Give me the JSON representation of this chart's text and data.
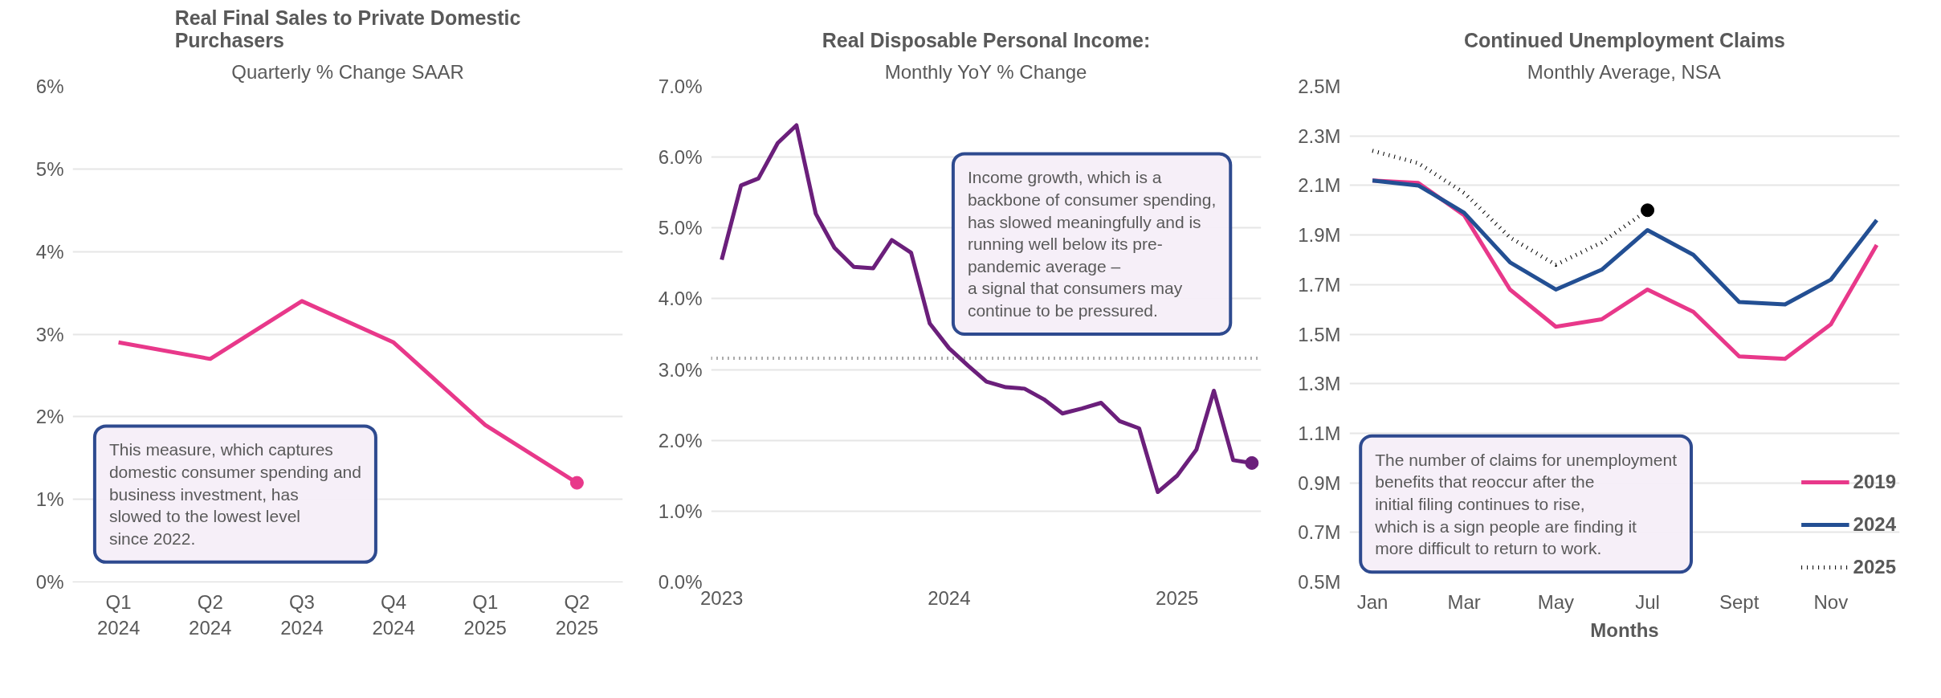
{
  "chart_data": [
    {
      "type": "line",
      "title": "Real Final Sales to Private Domestic Purchasers",
      "subtitle": "Quarterly % Change SAAR",
      "categories": [
        "Q1\n2024",
        "Q2\n2024",
        "Q3\n2024",
        "Q4\n2024",
        "Q1\n2025",
        "Q2\n2025"
      ],
      "series": [
        {
          "color": "#e8388a",
          "values": [
            2.9,
            2.7,
            3.4,
            2.9,
            1.9,
            1.2
          ]
        },
        {
          "type": "scatter",
          "marker": "circle",
          "color": "#e8388a",
          "values": [
            null,
            null,
            null,
            null,
            null,
            1.2
          ]
        }
      ],
      "ylim": [
        0,
        6
      ],
      "yticks": [
        {
          "value": 0,
          "label": "0%"
        },
        {
          "value": 1,
          "label": "1%"
        },
        {
          "value": 2,
          "label": "2%"
        },
        {
          "value": 3,
          "label": "3%"
        },
        {
          "value": 4,
          "label": "4%"
        },
        {
          "value": 5,
          "label": "5%"
        },
        {
          "value": 6,
          "label": "6%"
        }
      ],
      "grid": "y",
      "legend": false,
      "line_style": "solid",
      "annotations": [
        "This measure, which captures domestic consumer spending and business investment, has slowed to the lowest level since 2022."
      ]
    },
    {
      "type": "line",
      "title": "Real Disposable Personal Income:",
      "subtitle": "Monthly YoY % Change",
      "series": [
        {
          "color": "#6b1f7b",
          "x": [
            "2023-01",
            "2023-02",
            "2023-03",
            "2023-04",
            "2023-05",
            "2023-06",
            "2023-07",
            "2023-08",
            "2023-09",
            "2023-10",
            "2023-11",
            "2023-12",
            "2024-01",
            "2024-02",
            "2024-03",
            "2024-04",
            "2024-05",
            "2024-06",
            "2024-07",
            "2024-08",
            "2024-09",
            "2024-10",
            "2024-11",
            "2024-12",
            "2025-01",
            "2025-02",
            "2025-03",
            "2025-04",
            "2025-05"
          ],
          "values": [
            4.55,
            5.6,
            5.7,
            6.2,
            6.45,
            5.2,
            4.72,
            4.45,
            4.43,
            4.83,
            4.65,
            3.65,
            3.3,
            3.05,
            2.83,
            2.75,
            2.73,
            2.58,
            2.38,
            2.45,
            2.53,
            2.27,
            2.17,
            1.27,
            1.5,
            1.87,
            2.7,
            1.72,
            1.68
          ]
        },
        {
          "type": "scatter",
          "marker": "circle",
          "color": "#6b1f7b",
          "x": [
            "2025-05"
          ],
          "values": [
            1.68
          ]
        }
      ],
      "xlim": [
        "2022-12-15",
        "2025-05-16"
      ],
      "xticks": [
        {
          "value": "2023-01",
          "label": "2023"
        },
        {
          "value": "2024-01",
          "label": "2024"
        },
        {
          "value": "2025-01",
          "label": "2025"
        }
      ],
      "ylim": [
        0,
        7
      ],
      "yticks": [
        {
          "value": 0,
          "label": "0.0%"
        },
        {
          "value": 1,
          "label": "1.0%"
        },
        {
          "value": 2,
          "label": "2.0%"
        },
        {
          "value": 3,
          "label": "3.0%"
        },
        {
          "value": 4,
          "label": "4.0%"
        },
        {
          "value": 5,
          "label": "5.0%"
        },
        {
          "value": 6,
          "label": "6.0%"
        },
        {
          "value": 7,
          "label": "7.0%"
        }
      ],
      "ref_lines": [
        {
          "axis": "y",
          "value": 3.16,
          "color": "#595959",
          "line_style": "dotted"
        }
      ],
      "grid": "y",
      "legend": false,
      "line_style": "solid",
      "annotations": [
        "Income growth, which is a backbone of consumer spending, has slowed meaningfully and is running well below its pre-pandemic average –\na signal that consumers may continue to be pressured."
      ]
    },
    {
      "type": "line",
      "title": "Continued Unemployment Claims",
      "subtitle": "Monthly Average, NSA",
      "xlabel": "Months",
      "categories": [
        "Jan",
        null,
        "Mar",
        null,
        "May",
        null,
        "Jul",
        null,
        "Sept",
        null,
        "Nov",
        null
      ],
      "series": [
        {
          "name": "2019",
          "color": "#e8388a",
          "values": [
            2.12,
            2.11,
            1.98,
            1.68,
            1.53,
            1.56,
            1.68,
            1.59,
            1.41,
            1.4,
            1.54,
            1.86
          ]
        },
        {
          "name": "2024",
          "color": "#234f93",
          "values": [
            2.12,
            2.1,
            1.99,
            1.79,
            1.68,
            1.76,
            1.92,
            1.82,
            1.63,
            1.62,
            1.72,
            1.96
          ]
        },
        {
          "name": "2025",
          "color": "#000000",
          "line_style": "dotted",
          "values": [
            2.24,
            2.19,
            2.07,
            1.89,
            1.78,
            1.87,
            2.0,
            null,
            null,
            null,
            null,
            null
          ]
        },
        {
          "type": "scatter",
          "marker": "circle",
          "color": "#000000",
          "values": [
            null,
            null,
            null,
            null,
            null,
            null,
            2.0,
            null,
            null,
            null,
            null,
            null
          ]
        }
      ],
      "ylim": [
        0.5,
        2.5
      ],
      "yticks": [
        {
          "value": 0.5,
          "label": "0.5M"
        },
        {
          "value": 0.7,
          "label": "0.7M"
        },
        {
          "value": 0.9,
          "label": "0.9M"
        },
        {
          "value": 1.1,
          "label": "1.1M"
        },
        {
          "value": 1.3,
          "label": "1.3M"
        },
        {
          "value": 1.5,
          "label": "1.5M"
        },
        {
          "value": 1.7,
          "label": "1.7M"
        },
        {
          "value": 1.9,
          "label": "1.9M"
        },
        {
          "value": 2.1,
          "label": "2.1M"
        },
        {
          "value": 2.3,
          "label": "2.3M"
        },
        {
          "value": 2.5,
          "label": "2.5M"
        }
      ],
      "grid": "y",
      "legend": "bottom right",
      "line_style": "solid",
      "annotations": [
        "The number of claims for unemployment benefits that reoccur after the initial filing continues to rise, which is a sign people are finding it more difficult to return to work."
      ]
    }
  ]
}
